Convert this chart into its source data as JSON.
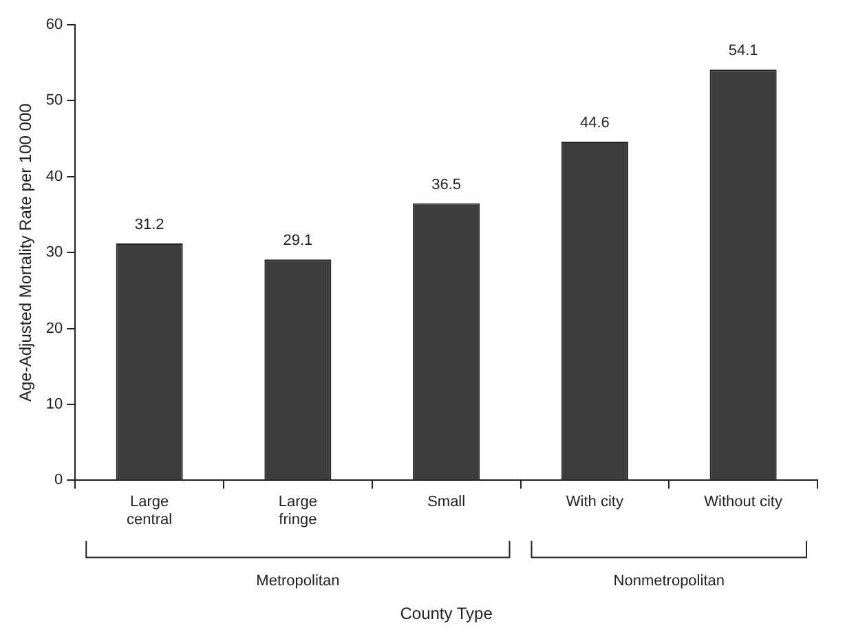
{
  "chart_data": {
    "type": "bar",
    "xlabel": "County Type",
    "ylabel": "Age-Adjusted Mortality Rate per 100 000",
    "categories": [
      "Large\ncentral",
      "Large\nfringe",
      "Small",
      "With city",
      "Without city"
    ],
    "values": [
      31.2,
      29.1,
      36.5,
      44.6,
      54.1
    ],
    "color": "#3c3c3c",
    "data_labels": true,
    "ylim": [
      0,
      60
    ],
    "yticks": [
      0,
      10,
      20,
      30,
      40,
      50,
      60
    ],
    "grid": false,
    "legend": false,
    "annotations": [
      "Metropolitan",
      "Nonmetropolitan"
    ]
  }
}
